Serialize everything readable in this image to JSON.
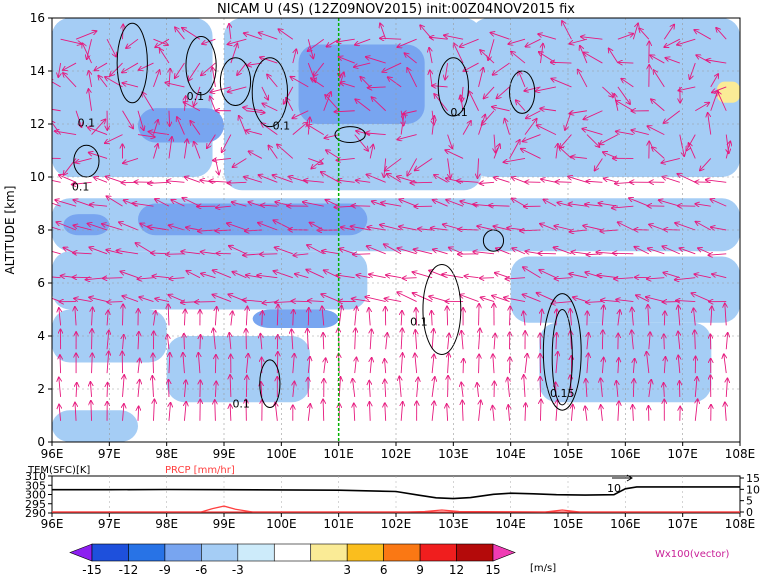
{
  "chart_data": [
    {
      "type": "heatmap",
      "title": "NICAM U (4S) (12Z09NOV2015) init:00Z04NOV2015 fix",
      "ylabel": "ALTITUDE [km]",
      "xlabel": "",
      "x_ticks": [
        "96E",
        "97E",
        "98E",
        "99E",
        "100E",
        "101E",
        "102E",
        "103E",
        "104E",
        "105E",
        "106E",
        "107E",
        "108E"
      ],
      "y_ticks": [
        "0",
        "2",
        "4",
        "6",
        "8",
        "10",
        "12",
        "14",
        "16"
      ],
      "xlim": [
        96,
        108
      ],
      "ylim": [
        0,
        16
      ],
      "grid": true,
      "marker_line_lon": 101.0,
      "contour_labels": [
        {
          "text": "0.1",
          "lon": 96.6,
          "alt": 11.9
        },
        {
          "text": "0.1",
          "lon": 96.5,
          "alt": 9.5
        },
        {
          "text": "0.1",
          "lon": 98.5,
          "alt": 12.9
        },
        {
          "text": "0.1",
          "lon": 100.0,
          "alt": 11.8
        },
        {
          "text": "0.1",
          "lon": 103.1,
          "alt": 12.3
        },
        {
          "text": "0.1",
          "lon": 102.4,
          "alt": 4.4
        },
        {
          "text": "0.1",
          "lon": 99.3,
          "alt": 1.3
        },
        {
          "text": "0.15",
          "lon": 104.9,
          "alt": 1.7
        }
      ],
      "shading_regions": [
        {
          "level": -6,
          "lon": [
            96.0,
            97.3
          ],
          "alt": [
            14.5,
            16.0
          ]
        },
        {
          "level": -3,
          "lon": [
            96.0,
            98.8
          ],
          "alt": [
            10.0,
            16.0
          ]
        },
        {
          "level": -3,
          "lon": [
            99.0,
            103.5
          ],
          "alt": [
            9.5,
            16.0
          ]
        },
        {
          "level": -3,
          "lon": [
            96.0,
            108.0
          ],
          "alt": [
            7.2,
            9.2
          ]
        },
        {
          "level": -3,
          "lon": [
            96.0,
            101.5
          ],
          "alt": [
            5.0,
            7.2
          ]
        },
        {
          "level": -3,
          "lon": [
            104.0,
            108.0
          ],
          "alt": [
            4.5,
            7.0
          ]
        },
        {
          "level": -3,
          "lon": [
            96.0,
            98.0
          ],
          "alt": [
            3.0,
            5.0
          ]
        },
        {
          "level": -3,
          "lon": [
            104.5,
            107.5
          ],
          "alt": [
            1.5,
            4.5
          ]
        },
        {
          "level": -3,
          "lon": [
            98.0,
            100.5
          ],
          "alt": [
            1.5,
            4.0
          ]
        },
        {
          "level": -3,
          "lon": [
            96.0,
            97.5
          ],
          "alt": [
            0.0,
            1.2
          ]
        },
        {
          "level": -6,
          "lon": [
            97.5,
            101.5
          ],
          "alt": [
            7.8,
            9.0
          ]
        },
        {
          "level": -6,
          "lon": [
            96.2,
            97.0
          ],
          "alt": [
            7.8,
            8.6
          ]
        },
        {
          "level": -6,
          "lon": [
            100.3,
            102.5
          ],
          "alt": [
            12.0,
            15.0
          ]
        },
        {
          "level": -6,
          "lon": [
            97.5,
            99.0
          ],
          "alt": [
            11.3,
            12.6
          ]
        },
        {
          "level": -6,
          "lon": [
            99.5,
            101.0
          ],
          "alt": [
            4.3,
            5.0
          ]
        },
        {
          "level": -3,
          "lon": [
            103.3,
            108.0
          ],
          "alt": [
            10.0,
            16.0
          ]
        },
        {
          "level": 3,
          "lon": [
            107.6,
            108.0
          ],
          "alt": [
            12.8,
            13.6
          ]
        }
      ]
    },
    {
      "type": "line",
      "left_label": "TEM(SFC)[K]",
      "right_label": "PRCP [mm/hr]",
      "left_ticks": [
        "310",
        "305",
        "300",
        "295",
        "290"
      ],
      "right_ticks": [
        "15",
        "10",
        "5",
        "0"
      ],
      "x_ticks": [
        "96E",
        "97E",
        "98E",
        "99E",
        "100E",
        "101E",
        "102E",
        "103E",
        "104E",
        "105E",
        "106E",
        "107E",
        "108E"
      ],
      "annotation": "10",
      "series": [
        {
          "name": "TEM(SFC)",
          "color": "#000000",
          "x": [
            96,
            97,
            98,
            99,
            100,
            101,
            102,
            102.4,
            102.7,
            103,
            103.3,
            103.7,
            104,
            104.4,
            104.8,
            105.3,
            105.8,
            106,
            106.2,
            107,
            108
          ],
          "values": [
            302.6,
            302.6,
            302.7,
            302.6,
            302.5,
            302.3,
            301.6,
            299.6,
            298.2,
            297.8,
            298.3,
            300.1,
            300.7,
            300.4,
            299.9,
            299.7,
            299.9,
            303.1,
            304.1,
            304.1,
            304.1
          ]
        },
        {
          "name": "PRCP",
          "color": "#ff4040",
          "x": [
            96,
            98.6,
            98.8,
            99.0,
            99.2,
            99.5,
            102.2,
            102.5,
            102.8,
            103.1,
            104.6,
            104.9,
            105.2,
            108
          ],
          "values": [
            0,
            0,
            1.5,
            2.6,
            1.2,
            0,
            0,
            0.2,
            0.9,
            0.2,
            0,
            0.9,
            0,
            0
          ]
        }
      ]
    }
  ],
  "colorbar": {
    "ticks": [
      "-15",
      "-12",
      "-9",
      "-6",
      "-3",
      "3",
      "6",
      "9",
      "12",
      "15"
    ],
    "unit": "[m/s]",
    "colors": [
      "#8c1ff0",
      "#1e50dc",
      "#2873e6",
      "#78a5f0",
      "#a5cdf5",
      "#cdebfa",
      "#ffffff",
      "#faeb96",
      "#fabe1e",
      "#fa7814",
      "#f01e1e",
      "#b40a0a",
      "#f03cb4"
    ],
    "vector_label": "Wx100(vector)"
  }
}
